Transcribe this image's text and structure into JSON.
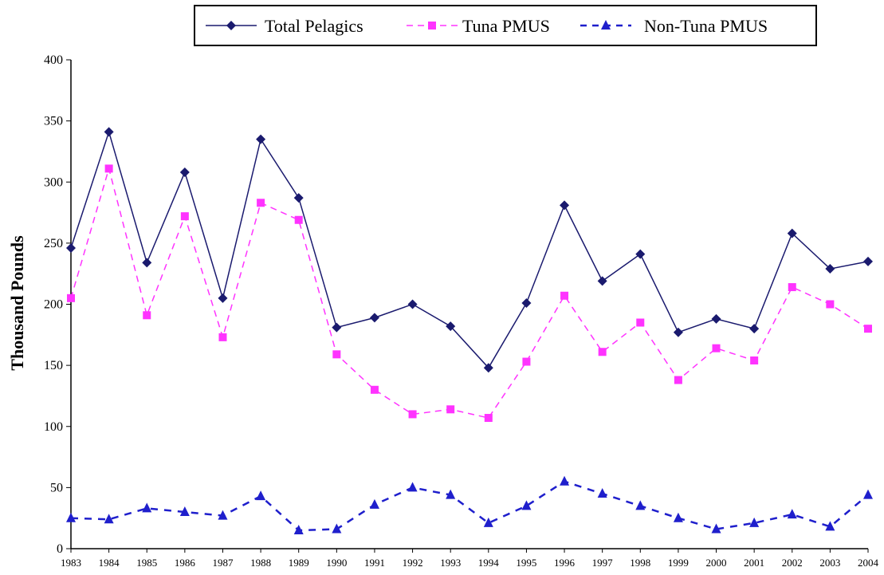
{
  "chart_data": {
    "type": "line",
    "title": "",
    "xlabel": "",
    "ylabel": "Thousand Pounds",
    "ylim": [
      0,
      400
    ],
    "yticks": [
      0,
      50,
      100,
      150,
      200,
      250,
      300,
      350,
      400
    ],
    "grid": false,
    "legend_position": "top",
    "x": [
      "1983",
      "1984",
      "1985",
      "1986",
      "1987",
      "1988",
      "1989",
      "1990",
      "1991",
      "1992",
      "1993",
      "1994",
      "1995",
      "1996",
      "1997",
      "1998",
      "1999",
      "2000",
      "2001",
      "2002",
      "2003",
      "2004"
    ],
    "series": [
      {
        "name": "Total Pelagics",
        "color": "#1a1a6e",
        "line_style": "solid",
        "marker": "diamond",
        "values": [
          246,
          341,
          234,
          308,
          205,
          335,
          287,
          181,
          189,
          200,
          182,
          148,
          201,
          281,
          219,
          241,
          177,
          188,
          180,
          258,
          229,
          235
        ]
      },
      {
        "name": "Tuna PMUS",
        "color": "#ff33ff",
        "line_style": "dashed",
        "marker": "square",
        "values": [
          205,
          311,
          191,
          272,
          173,
          283,
          269,
          159,
          130,
          110,
          114,
          107,
          153,
          207,
          161,
          185,
          138,
          164,
          154,
          214,
          200,
          180
        ]
      },
      {
        "name": "Non-Tuna PMUS",
        "color": "#1f1fcc",
        "line_style": "dashed",
        "marker": "triangle",
        "values": [
          25,
          24,
          33,
          30,
          27,
          43,
          15,
          16,
          36,
          50,
          44,
          21,
          35,
          55,
          45,
          35,
          25,
          16,
          21,
          28,
          18,
          44
        ]
      }
    ]
  }
}
